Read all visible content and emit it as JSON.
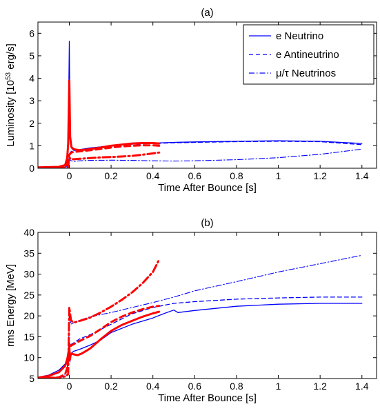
{
  "chart_data": [
    {
      "type": "line",
      "title": "(a)",
      "xlabel": "Time After Bounce [s]",
      "ylabel": "Luminosity [10",
      "ylabel_sup": "53",
      "ylabel_unit": " erg/s]",
      "xlim": [
        -0.15,
        1.47
      ],
      "ylim": [
        0,
        6.5
      ],
      "xticks": [
        0,
        0.2,
        0.4,
        0.6,
        0.8,
        1,
        1.2,
        1.4
      ],
      "xtick_labels": [
        "0",
        "0.2",
        "0.4",
        "0.6",
        "0.8",
        "1",
        "1.2",
        "1.4"
      ],
      "yticks": [
        0,
        1,
        2,
        3,
        4,
        5,
        6
      ],
      "ytick_labels": [
        "0",
        "1",
        "2",
        "3",
        "4",
        "5",
        "6"
      ],
      "grid": false,
      "legend_position": "top-right",
      "legend": [
        {
          "label": "e Neutrino",
          "style": "solid"
        },
        {
          "label": "e Antineutrino",
          "style": "dashed"
        },
        {
          "label": "μ/τ Neutrinos",
          "style": "dashdot"
        }
      ],
      "series": [
        {
          "name": "e Neutrino",
          "color": "#0000ff",
          "style": "solid",
          "width": 1.3,
          "x": [
            -0.15,
            -0.05,
            -0.02,
            -0.01,
            -0.005,
            0,
            0.004,
            0.01,
            0.02,
            0.05,
            0.1,
            0.2,
            0.3,
            0.4,
            0.5,
            0.6,
            0.8,
            1.0,
            1.2,
            1.4
          ],
          "y": [
            0.04,
            0.06,
            0.12,
            0.4,
            1.0,
            5.65,
            1.5,
            0.9,
            0.8,
            0.83,
            0.9,
            1.0,
            1.08,
            1.12,
            1.15,
            1.17,
            1.2,
            1.22,
            1.2,
            1.1
          ]
        },
        {
          "name": "e Antineutrino",
          "color": "#0000ff",
          "style": "dashed",
          "width": 1.3,
          "x": [
            -0.15,
            -0.05,
            -0.02,
            -0.01,
            -0.005,
            0,
            0.004,
            0.01,
            0.02,
            0.05,
            0.1,
            0.2,
            0.3,
            0.4,
            0.5,
            0.6,
            0.8,
            1.0,
            1.2,
            1.4
          ],
          "y": [
            0.03,
            0.04,
            0.06,
            0.1,
            0.2,
            0.55,
            0.7,
            0.75,
            0.78,
            0.82,
            0.9,
            1.0,
            1.07,
            1.1,
            1.13,
            1.15,
            1.18,
            1.2,
            1.18,
            1.05
          ]
        },
        {
          "name": "μ/τ Neutrinos",
          "color": "#0000ff",
          "style": "dashdot",
          "width": 1.1,
          "x": [
            -0.15,
            -0.02,
            -0.005,
            0,
            0.005,
            0.02,
            0.05,
            0.1,
            0.2,
            0.3,
            0.4,
            0.5,
            0.6,
            0.8,
            1.0,
            1.2,
            1.4
          ],
          "y": [
            0.02,
            0.03,
            0.05,
            0.55,
            0.35,
            0.3,
            0.33,
            0.35,
            0.36,
            0.35,
            0.33,
            0.32,
            0.33,
            0.38,
            0.47,
            0.62,
            0.85
          ]
        },
        {
          "name": "",
          "color": "#ff0000",
          "style": "solid",
          "width": 3,
          "x": [
            -0.15,
            -0.05,
            -0.02,
            -0.01,
            -0.005,
            0,
            0.004,
            0.01,
            0.02,
            0.05,
            0.1,
            0.15,
            0.2,
            0.25,
            0.3,
            0.35,
            0.4,
            0.43
          ],
          "y": [
            0.04,
            0.06,
            0.14,
            0.45,
            1.1,
            3.9,
            1.4,
            0.95,
            0.85,
            0.8,
            0.85,
            0.92,
            1.0,
            1.05,
            1.1,
            1.12,
            1.12,
            1.1
          ]
        },
        {
          "name": "",
          "color": "#ff0000",
          "style": "dashed",
          "width": 3,
          "x": [
            -0.15,
            -0.05,
            -0.02,
            -0.01,
            0,
            0.005,
            0.01,
            0.02,
            0.05,
            0.1,
            0.15,
            0.2,
            0.25,
            0.3,
            0.35,
            0.4,
            0.43
          ],
          "y": [
            0.03,
            0.04,
            0.07,
            0.2,
            0.6,
            0.65,
            0.7,
            0.72,
            0.75,
            0.8,
            0.86,
            0.92,
            0.97,
            1.0,
            1.02,
            1.02,
            1.0
          ]
        },
        {
          "name": "",
          "color": "#ff0000",
          "style": "dashdot",
          "width": 3,
          "x": [
            -0.15,
            -0.02,
            -0.005,
            0,
            0.005,
            0.02,
            0.05,
            0.1,
            0.15,
            0.2,
            0.25,
            0.3,
            0.35,
            0.4,
            0.43
          ],
          "y": [
            0.02,
            0.03,
            0.06,
            0.5,
            0.42,
            0.4,
            0.42,
            0.45,
            0.48,
            0.5,
            0.52,
            0.55,
            0.6,
            0.66,
            0.7
          ]
        }
      ]
    },
    {
      "type": "line",
      "title": "(b)",
      "xlabel": "Time After Bounce [s]",
      "ylabel": "rms Energy [MeV]",
      "xlim": [
        -0.15,
        1.47
      ],
      "ylim": [
        5,
        40
      ],
      "xticks": [
        0,
        0.2,
        0.4,
        0.6,
        0.8,
        1,
        1.2,
        1.4
      ],
      "xtick_labels": [
        "0",
        "0.2",
        "0.4",
        "0.6",
        "0.8",
        "1",
        "1.2",
        "1.4"
      ],
      "yticks": [
        5,
        10,
        15,
        20,
        25,
        30,
        35,
        40
      ],
      "ytick_labels": [
        "5",
        "10",
        "15",
        "20",
        "25",
        "30",
        "35",
        "40"
      ],
      "grid": false,
      "series": [
        {
          "name": "e Neutrino",
          "color": "#0000ff",
          "style": "solid",
          "width": 1.3,
          "x": [
            -0.15,
            -0.1,
            -0.05,
            -0.02,
            -0.01,
            0,
            0.003,
            0.006,
            0.01,
            0.02,
            0.05,
            0.1,
            0.15,
            0.2,
            0.3,
            0.4,
            0.45,
            0.5,
            0.52,
            0.6,
            0.8,
            1.0,
            1.2,
            1.4
          ],
          "y": [
            5.3,
            5.8,
            7,
            8.5,
            10,
            13,
            9,
            10.5,
            11,
            11.5,
            12,
            13,
            14.2,
            16,
            18,
            19.5,
            20.5,
            21.4,
            20.8,
            21.3,
            22.3,
            22.8,
            23,
            23
          ]
        },
        {
          "name": "e Antineutrino",
          "color": "#0000ff",
          "style": "dashed",
          "width": 1.3,
          "x": [
            -0.15,
            -0.05,
            -0.02,
            -0.01,
            0,
            0.003,
            0.006,
            0.01,
            0.02,
            0.05,
            0.1,
            0.2,
            0.3,
            0.4,
            0.5,
            0.6,
            0.8,
            1.0,
            1.2,
            1.4
          ],
          "y": [
            5,
            5.3,
            6,
            7.5,
            12,
            13.5,
            13,
            13.2,
            13.5,
            14.5,
            15.5,
            18,
            20.5,
            22,
            23,
            23.4,
            24,
            24.3,
            24.5,
            24.5
          ]
        },
        {
          "name": "μ/τ Neutrinos",
          "color": "#0000ff",
          "style": "dashdot",
          "width": 1.1,
          "x": [
            -0.15,
            -0.05,
            -0.02,
            -0.005,
            0,
            0.004,
            0.008,
            0.015,
            0.03,
            0.1,
            0.2,
            0.3,
            0.4,
            0.5,
            0.6,
            0.8,
            1.0,
            1.2,
            1.4
          ],
          "y": [
            5,
            5.2,
            5.5,
            6,
            21,
            19.5,
            18,
            18.2,
            18.6,
            19.8,
            20.8,
            22,
            23.2,
            24.5,
            26,
            28.2,
            30.5,
            32.5,
            34.5
          ]
        },
        {
          "name": "",
          "color": "#ff0000",
          "style": "solid",
          "width": 3,
          "x": [
            -0.15,
            -0.1,
            -0.05,
            -0.02,
            -0.01,
            0,
            0.003,
            0.006,
            0.01,
            0.02,
            0.04,
            0.06,
            0.1,
            0.15,
            0.2,
            0.25,
            0.3,
            0.35,
            0.4,
            0.43
          ],
          "y": [
            5.2,
            5.6,
            6.5,
            8,
            9.5,
            12.5,
            9.5,
            10.5,
            11,
            10.8,
            10.6,
            11,
            12.2,
            14.4,
            16.4,
            17.8,
            18.8,
            19.8,
            20.6,
            21
          ]
        },
        {
          "name": "",
          "color": "#ff0000",
          "style": "dashed",
          "width": 3,
          "x": [
            -0.15,
            -0.05,
            -0.02,
            -0.01,
            0,
            0.003,
            0.006,
            0.01,
            0.02,
            0.05,
            0.1,
            0.15,
            0.2,
            0.25,
            0.3,
            0.35,
            0.4,
            0.43
          ],
          "y": [
            5,
            5.3,
            6,
            7.5,
            12,
            13,
            12.8,
            12.9,
            13.2,
            14,
            15.2,
            16.8,
            18.5,
            19.8,
            20.8,
            21.6,
            22.2,
            22.4
          ]
        },
        {
          "name": "",
          "color": "#ff0000",
          "style": "dashdot",
          "width": 3,
          "x": [
            -0.15,
            -0.05,
            -0.02,
            -0.005,
            0,
            0.004,
            0.008,
            0.015,
            0.03,
            0.05,
            0.1,
            0.15,
            0.2,
            0.25,
            0.3,
            0.35,
            0.4,
            0.43
          ],
          "y": [
            5,
            5.2,
            5.5,
            6,
            22,
            20.5,
            19,
            18.6,
            18.5,
            18.8,
            19.6,
            20.8,
            22.2,
            23.8,
            25.6,
            27.8,
            30.5,
            33.5
          ]
        }
      ]
    }
  ]
}
